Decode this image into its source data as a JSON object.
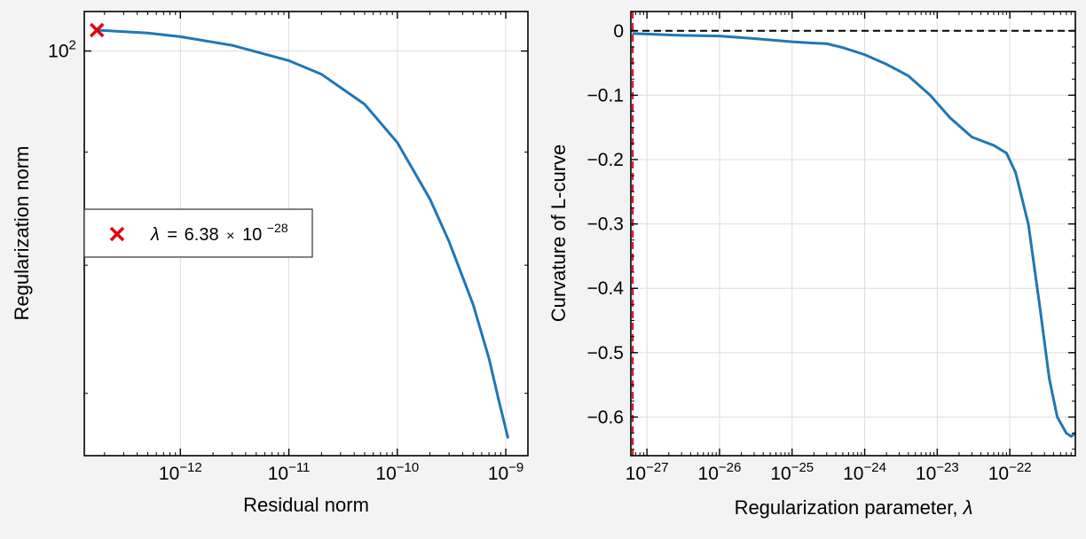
{
  "chart_data": [
    {
      "type": "line",
      "xlabel": "Residual norm",
      "ylabel": "Regularization norm",
      "x_scale": "log",
      "y_scale": "log",
      "xlim": [
        1.3e-13,
        1.6e-09
      ],
      "ylim": [
        65.6,
        104.2
      ],
      "x_tick_labels": [
        "10^-12",
        "10^-11",
        "10^-10",
        "10^-9"
      ],
      "y_tick_labels": [
        "10^2"
      ],
      "grid": true,
      "legend_position": "center-left",
      "series": [
        {
          "color": "#1f77b4",
          "points": [
            [
              1.7e-13,
              102.2
            ],
            [
              5e-13,
              101.9
            ],
            [
              1e-12,
              101.5
            ],
            [
              3e-12,
              100.6
            ],
            [
              1e-11,
              99.0
            ],
            [
              2e-11,
              97.6
            ],
            [
              5e-11,
              94.6
            ],
            [
              1e-10,
              90.9
            ],
            [
              2e-10,
              85.7
            ],
            [
              3e-10,
              82.0
            ],
            [
              5e-10,
              76.8
            ],
            [
              7e-10,
              72.6
            ],
            [
              8.5e-10,
              69.7
            ],
            [
              1.05e-09,
              66.8
            ]
          ]
        }
      ],
      "markers": [
        {
          "label": "λ = 6.38 × 10^-28",
          "x": 1.7e-13,
          "y": 102.2,
          "color": "#e8000b",
          "symbol": "x"
        }
      ],
      "legend": {
        "marker_color": "#e8000b",
        "lambda_symbol": "λ",
        "equals": "=",
        "mantissa": "6.38",
        "times": "×",
        "base": "10",
        "exponent": "−28"
      }
    },
    {
      "type": "line",
      "xlabel": "Regularization parameter, λ",
      "ylabel": "Curvature of L-curve",
      "x_scale": "log",
      "xlim": [
        6e-28,
        8e-22
      ],
      "ylim": [
        -0.66,
        0.03
      ],
      "x_tick_labels": [
        "10^-27",
        "10^-26",
        "10^-25",
        "10^-24",
        "10^-23",
        "10^-22"
      ],
      "y_ticks": [
        0,
        -0.1,
        -0.2,
        -0.3,
        -0.4,
        -0.5,
        -0.6
      ],
      "y_tick_labels": [
        "0",
        "−0.1",
        "−0.2",
        "−0.3",
        "−0.4",
        "−0.5",
        "−0.6"
      ],
      "grid": true,
      "reference_lines": [
        {
          "orientation": "horizontal",
          "value": 0,
          "style": "dashed",
          "color": "#000000"
        },
        {
          "orientation": "vertical",
          "value": 6.38e-28,
          "style": "dashed",
          "color": "#e8000b"
        }
      ],
      "series": [
        {
          "color": "#1f77b4",
          "points": [
            [
              6.3e-28,
              -0.004
            ],
            [
              1e-27,
              -0.005
            ],
            [
              3e-27,
              -0.007
            ],
            [
              1e-26,
              -0.008
            ],
            [
              3e-26,
              -0.012
            ],
            [
              1e-25,
              -0.017
            ],
            [
              2e-25,
              -0.019
            ],
            [
              3e-25,
              -0.02
            ],
            [
              5e-25,
              -0.026
            ],
            [
              1e-24,
              -0.037
            ],
            [
              2e-24,
              -0.052
            ],
            [
              4e-24,
              -0.07
            ],
            [
              8e-24,
              -0.1
            ],
            [
              1.5e-23,
              -0.135
            ],
            [
              3e-23,
              -0.165
            ],
            [
              6e-23,
              -0.178
            ],
            [
              9e-23,
              -0.19
            ],
            [
              1.2e-22,
              -0.22
            ],
            [
              1.8e-22,
              -0.3
            ],
            [
              2.6e-22,
              -0.43
            ],
            [
              3.5e-22,
              -0.54
            ],
            [
              4.5e-22,
              -0.6
            ],
            [
              6e-22,
              -0.625
            ],
            [
              7e-22,
              -0.63
            ],
            [
              8e-22,
              -0.625
            ]
          ]
        }
      ]
    }
  ]
}
